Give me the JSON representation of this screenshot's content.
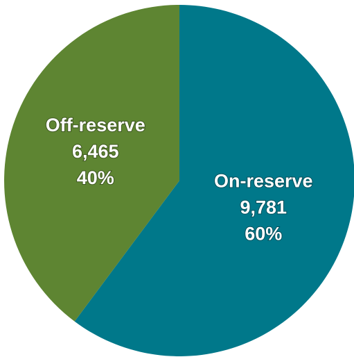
{
  "chart_data": {
    "type": "pie",
    "title": "",
    "slices": [
      {
        "label": "On-reserve",
        "value": 9781,
        "value_text": "9,781",
        "percent": 60,
        "percent_text": "60%",
        "color": "#00788a"
      },
      {
        "label": "Off-reserve",
        "value": 6465,
        "value_text": "6,465",
        "percent": 40,
        "percent_text": "40%",
        "color": "#5e8532"
      }
    ],
    "start_angle_deg": 0,
    "direction": "clockwise"
  }
}
